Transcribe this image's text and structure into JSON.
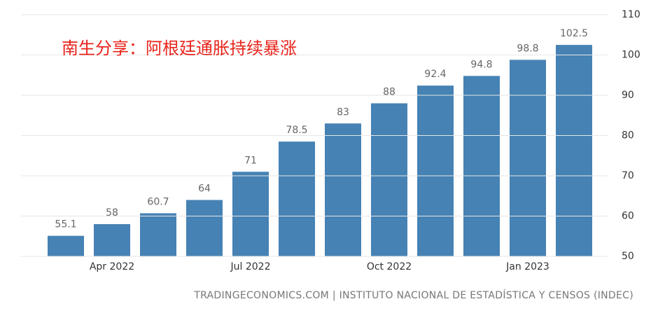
{
  "chart_data": {
    "type": "bar",
    "title": "南生分享：阿根廷通胀持续暴涨",
    "source": "TRADINGECONOMICS.COM | INSTITUTO NACIONAL DE ESTADÍSTICA Y CENSOS (INDEC)",
    "categories": [
      null,
      "Apr 2022",
      null,
      null,
      "Jul 2022",
      null,
      null,
      "Oct 2022",
      null,
      null,
      "Jan 2023",
      null
    ],
    "values": [
      55.1,
      58,
      60.7,
      64,
      71,
      78.5,
      83,
      88,
      92.4,
      94.8,
      98.8,
      102.5
    ],
    "color": "#4682b4",
    "ylim": [
      50,
      110
    ],
    "yticks": [
      50,
      60,
      70,
      80,
      90,
      100,
      110
    ],
    "grid": true
  }
}
